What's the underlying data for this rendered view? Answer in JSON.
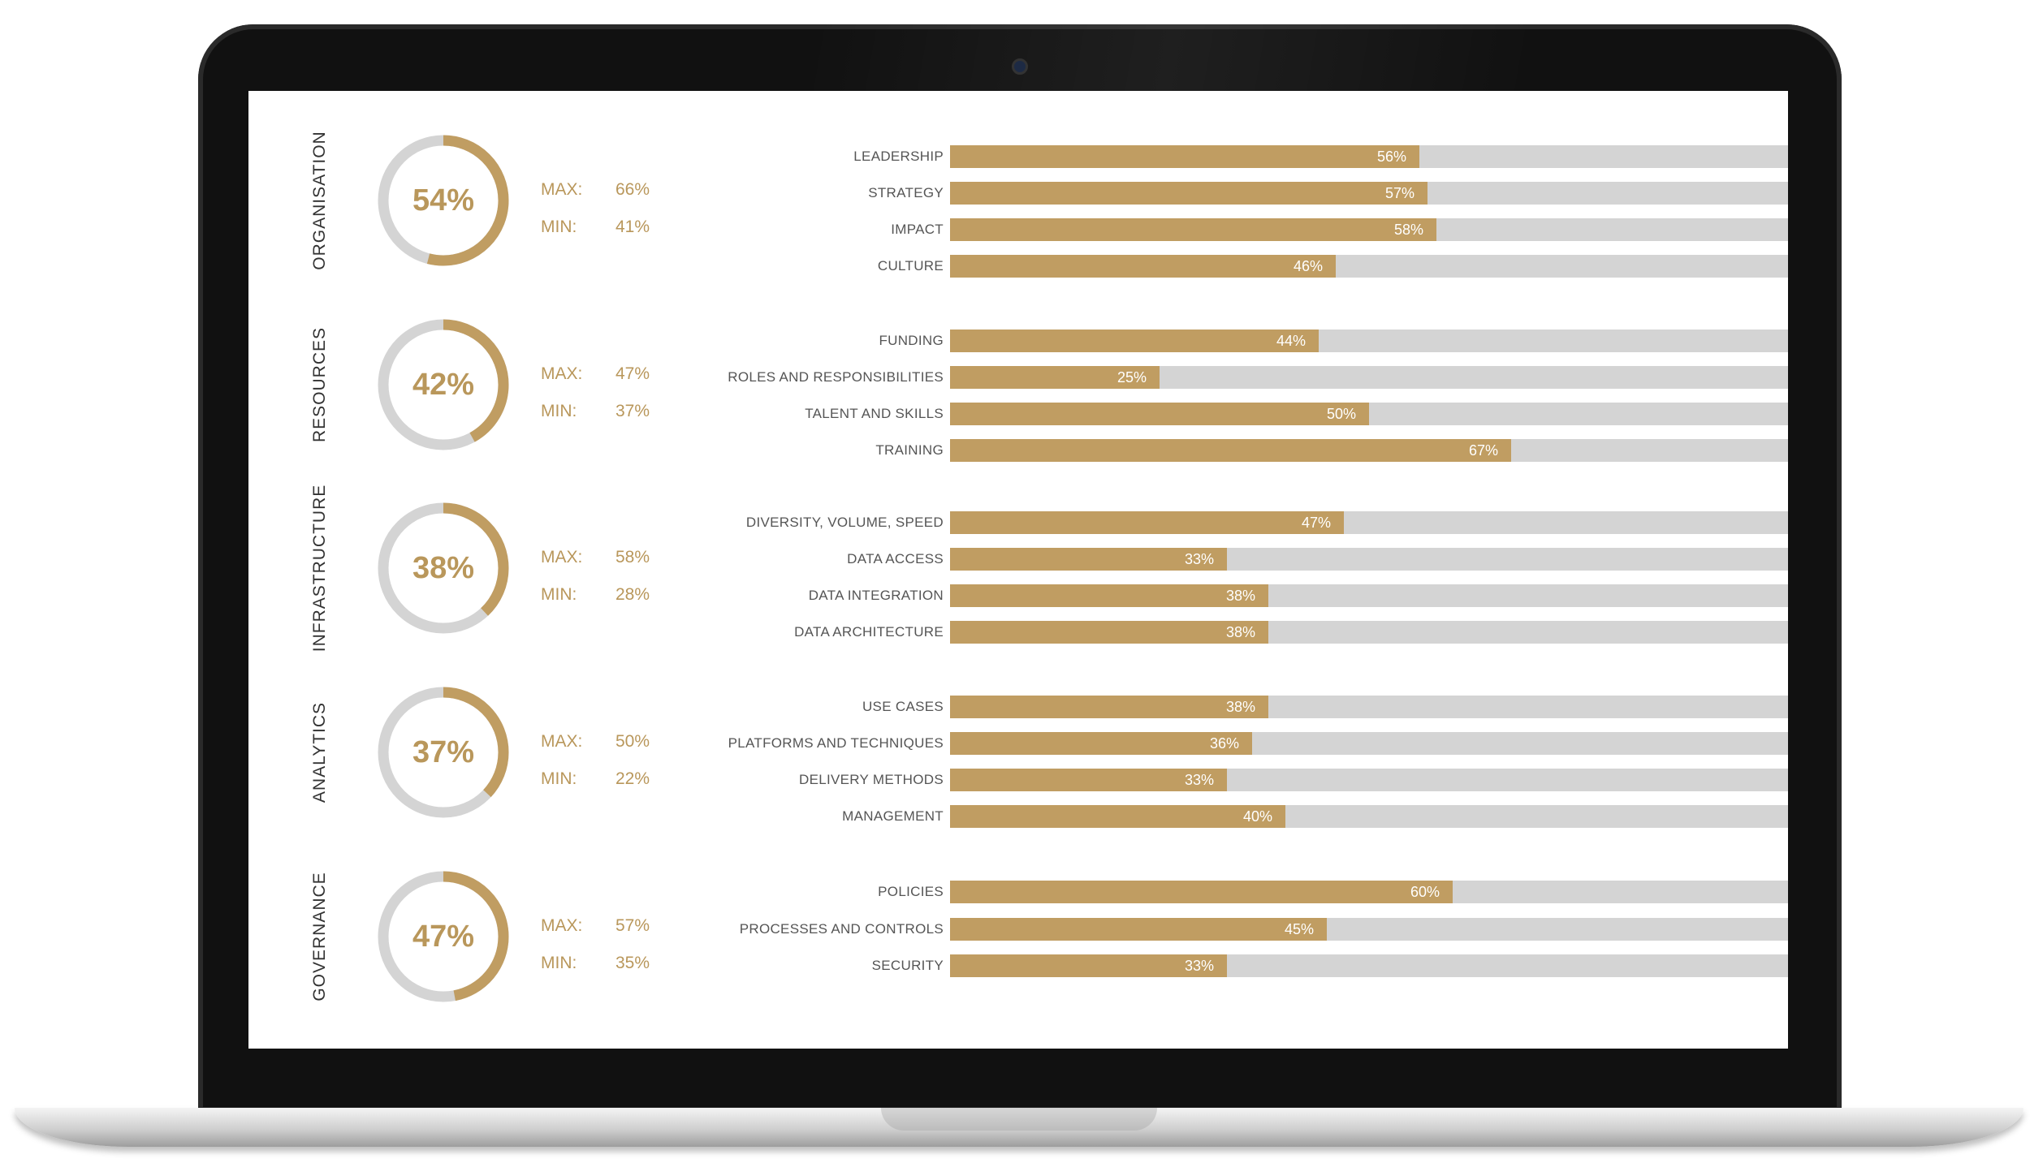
{
  "colors": {
    "accent": "#c09d62",
    "track": "#d4d4d4",
    "text": "#333333"
  },
  "labels": {
    "max": "MAX:",
    "min": "MIN:"
  },
  "chart_data": {
    "type": "bar",
    "xlim": [
      0,
      100
    ],
    "groups": [
      {
        "category": "ORGANISATION",
        "score": 54,
        "score_label": "54%",
        "max": "66%",
        "min": "41%",
        "bars": [
          {
            "label": "LEADERSHIP",
            "value": 56,
            "value_label": "56%"
          },
          {
            "label": "STRATEGY",
            "value": 57,
            "value_label": "57%"
          },
          {
            "label": "IMPACT",
            "value": 58,
            "value_label": "58%"
          },
          {
            "label": "CULTURE",
            "value": 46,
            "value_label": "46%"
          }
        ]
      },
      {
        "category": "RESOURCES",
        "score": 42,
        "score_label": "42%",
        "max": "47%",
        "min": "37%",
        "bars": [
          {
            "label": "FUNDING",
            "value": 44,
            "value_label": "44%"
          },
          {
            "label": "ROLES AND RESPONSIBILITIES",
            "value": 25,
            "value_label": "25%"
          },
          {
            "label": "TALENT AND SKILLS",
            "value": 50,
            "value_label": "50%"
          },
          {
            "label": "TRAINING",
            "value": 67,
            "value_label": "67%"
          }
        ]
      },
      {
        "category": "INFRASTRUCTURE",
        "score": 38,
        "score_label": "38%",
        "max": "58%",
        "min": "28%",
        "bars": [
          {
            "label": "DIVERSITY, VOLUME, SPEED",
            "value": 47,
            "value_label": "47%"
          },
          {
            "label": "DATA ACCESS",
            "value": 33,
            "value_label": "33%"
          },
          {
            "label": "DATA INTEGRATION",
            "value": 38,
            "value_label": "38%"
          },
          {
            "label": "DATA ARCHITECTURE",
            "value": 38,
            "value_label": "38%"
          }
        ]
      },
      {
        "category": "ANALYTICS",
        "score": 37,
        "score_label": "37%",
        "max": "50%",
        "min": "22%",
        "bars": [
          {
            "label": "USE CASES",
            "value": 38,
            "value_label": "38%"
          },
          {
            "label": "PLATFORMS AND TECHNIQUES",
            "value": 36,
            "value_label": "36%"
          },
          {
            "label": "DELIVERY METHODS",
            "value": 33,
            "value_label": "33%"
          },
          {
            "label": "MANAGEMENT",
            "value": 40,
            "value_label": "40%"
          }
        ]
      },
      {
        "category": "GOVERNANCE",
        "score": 47,
        "score_label": "47%",
        "max": "57%",
        "min": "35%",
        "bars": [
          {
            "label": "POLICIES",
            "value": 60,
            "value_label": "60%"
          },
          {
            "label": "PROCESSES AND CONTROLS",
            "value": 45,
            "value_label": "45%"
          },
          {
            "label": "SECURITY",
            "value": 33,
            "value_label": "33%"
          }
        ]
      }
    ]
  }
}
